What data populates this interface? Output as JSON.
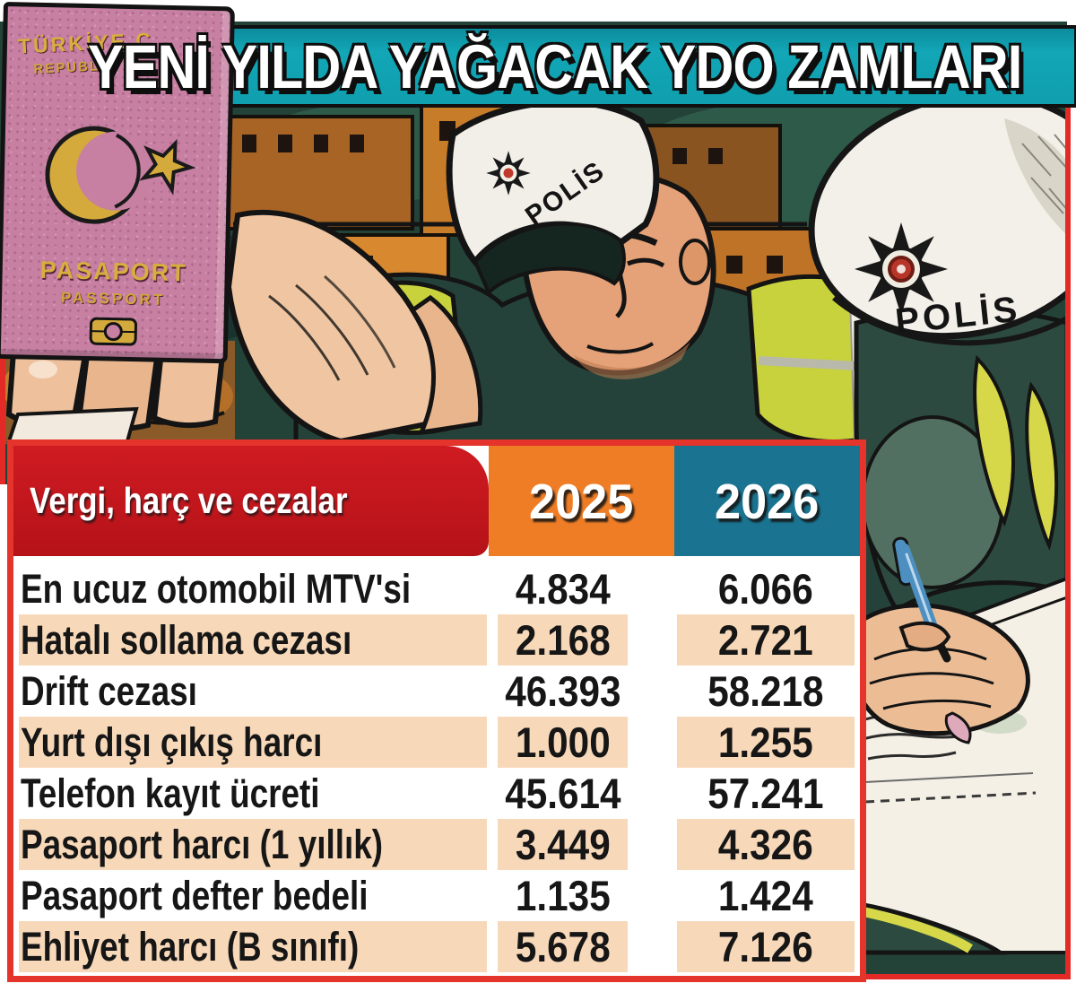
{
  "title": "YENİ YILDA YAĞACAK YDO ZAMLARI",
  "passport": {
    "country_line1": "TÜRKİYE C",
    "country_line2": "REPUBLIC",
    "label_tr": "PASAPORT",
    "label_en": "PASSPORT"
  },
  "police": {
    "cap_text": "POLİS",
    "helmet_text": "POLİS"
  },
  "table": {
    "header": {
      "label": "Vergi, harç ve cezalar",
      "col1": "2025",
      "col2": "2026"
    },
    "rows": [
      {
        "label": "En ucuz otomobil MTV'si",
        "v2025": "4.834",
        "v2026": "6.066"
      },
      {
        "label": "Hatalı sollama cezası",
        "v2025": "2.168",
        "v2026": "2.721"
      },
      {
        "label": "Drift cezası",
        "v2025": "46.393",
        "v2026": "58.218"
      },
      {
        "label": "Yurt dışı çıkış harcı",
        "v2025": "1.000",
        "v2026": "1.255"
      },
      {
        "label": "Telefon kayıt ücreti",
        "v2025": "45.614",
        "v2026": "57.241"
      },
      {
        "label": "Pasaport harcı (1 yıllık)",
        "v2025": "3.449",
        "v2026": "4.326"
      },
      {
        "label": "Pasaport defter bedeli",
        "v2025": "1.135",
        "v2026": "1.424"
      },
      {
        "label": "Ehliyet harcı (B sınıfı)",
        "v2025": "5.678",
        "v2026": "7.126"
      }
    ]
  },
  "chart_data": {
    "type": "table",
    "title": "YENİ YILDA YAĞACAK YDO ZAMLARI",
    "columns": [
      "Vergi, harç ve cezalar",
      "2025",
      "2026"
    ],
    "rows": [
      [
        "En ucuz otomobil MTV'si",
        "4.834",
        "6.066"
      ],
      [
        "Hatalı sollama cezası",
        "2.168",
        "2.721"
      ],
      [
        "Drift cezası",
        "46.393",
        "58.218"
      ],
      [
        "Yurt dışı çıkış harcı",
        "1.000",
        "1.255"
      ],
      [
        "Telefon kayıt ücreti",
        "45.614",
        "57.241"
      ],
      [
        "Pasaport harcı (1 yıllık)",
        "3.449",
        "4.326"
      ],
      [
        "Pasaport defter bedeli",
        "1.135",
        "1.424"
      ],
      [
        "Ehliyet harcı (B sınıfı)",
        "5.678",
        "7.126"
      ]
    ]
  },
  "colors": {
    "banner_teal": "#0f9fae",
    "header_red": "#c3161d",
    "col_2025_orange": "#ef7d26",
    "col_2026_teal": "#1a7390",
    "row_peach": "#f7d8b9",
    "frame_red": "#e4342b",
    "passport_pink": "#c77fa2",
    "passport_gold": "#d8ae3e"
  }
}
